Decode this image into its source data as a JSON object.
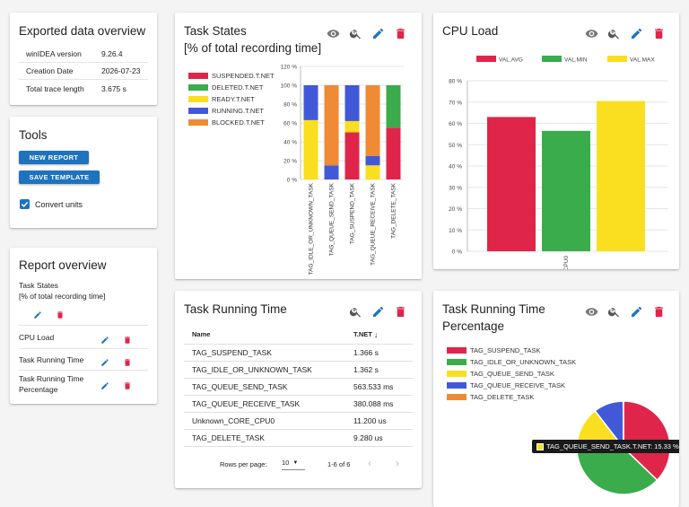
{
  "colors": {
    "red": "#e0254a",
    "green": "#3aac4b",
    "yellow": "#f9df1f",
    "blue": "#4159d8",
    "orange": "#ef8a35",
    "accent": "#1e73be"
  },
  "export": {
    "title": "Exported data overview",
    "rows": [
      {
        "key": "winIDEA version",
        "value": "9.26.4"
      },
      {
        "key": "Creation Date",
        "value": "2026-07-23"
      },
      {
        "key": "Total trace length",
        "value": "3.675 s"
      }
    ]
  },
  "tools": {
    "title": "Tools",
    "new_report": "NEW REPORT",
    "save_template": "SAVE TEMPLATE",
    "convert_units": "Convert units",
    "convert_checked": true
  },
  "report_overview": {
    "title": "Report overview",
    "items": [
      "Task States",
      "[% of total recording time]",
      "CPU Load",
      "Task Running Time",
      "Task Running Time",
      "Percentage"
    ]
  },
  "task_states": {
    "title_line1": "Task States",
    "title_line2": "[% of total recording time]",
    "icons": [
      "eye-icon",
      "zoom-icon",
      "edit-icon",
      "delete-icon"
    ]
  },
  "cpu_load": {
    "title": "CPU Load"
  },
  "task_running_time": {
    "title": "Task Running Time",
    "col_name": "Name",
    "col_value": "T.NET",
    "rows": [
      {
        "name": "TAG_SUSPEND_TASK",
        "value": "1.366 s"
      },
      {
        "name": "TAG_IDLE_OR_UNKNOWN_TASK",
        "value": "1.362 s"
      },
      {
        "name": "TAG_QUEUE_SEND_TASK",
        "value": "563.533 ms"
      },
      {
        "name": "TAG_QUEUE_RECEIVE_TASK",
        "value": "380.088 ms"
      },
      {
        "name": "Unknown_CORE_CPU0",
        "value": "11.200 us"
      },
      {
        "name": "TAG_DELETE_TASK",
        "value": "9.280 us"
      }
    ],
    "rows_per_page_label": "Rows per page:",
    "rows_per_page": "10",
    "page_range": "1-6 of 6"
  },
  "trt_pct": {
    "title_line1": "Task Running Time",
    "title_line2": "Percentage",
    "tooltip": "TAG_QUEUE_SEND_TASK.T.NET: 15.33 %"
  },
  "chart_data": [
    {
      "type": "bar",
      "stacked": true,
      "title": "Task States [% of total recording time]",
      "categories": [
        "TAG_IDLE_OR_UNKNOWN_TASK",
        "TAG_QUEUE_SEND_TASK",
        "TAG_SUSPEND_TASK",
        "TAG_QUEUE_RECEIVE_TASK",
        "TAG_DELETE_TASK"
      ],
      "yticks": [
        "0 %",
        "20 %",
        "40 %",
        "60 %",
        "80 %",
        "100 %",
        "120 %"
      ],
      "ylim": [
        0,
        120
      ],
      "series": [
        {
          "name": "SUSPENDED.T.NET",
          "color": "#e0254a",
          "values": [
            0,
            0,
            50,
            0,
            55
          ]
        },
        {
          "name": "DELETED.T.NET",
          "color": "#3aac4b",
          "values": [
            0,
            0,
            0,
            0,
            45
          ]
        },
        {
          "name": "READY.T.NET",
          "color": "#f9df1f",
          "values": [
            63,
            0,
            12,
            15,
            0
          ]
        },
        {
          "name": "RUNNING.T.NET",
          "color": "#4159d8",
          "values": [
            37,
            15,
            38,
            10,
            0
          ]
        },
        {
          "name": "BLOCKED.T.NET",
          "color": "#ef8a35",
          "values": [
            0,
            85,
            0,
            75,
            0
          ]
        }
      ],
      "legend": "left"
    },
    {
      "type": "bar",
      "title": "CPU Load",
      "categories": [
        "CPU0"
      ],
      "yticks": [
        "0 %",
        "10 %",
        "20 %",
        "30 %",
        "40 %",
        "50 %",
        "60 %",
        "70 %",
        "80 %"
      ],
      "ylim": [
        0,
        80
      ],
      "series": [
        {
          "name": "VAL.AVG",
          "color": "#e0254a",
          "values": [
            63
          ]
        },
        {
          "name": "VAL.MIN",
          "color": "#3aac4b",
          "values": [
            56.5
          ]
        },
        {
          "name": "VAL.MAX",
          "color": "#f9df1f",
          "values": [
            70.5
          ]
        }
      ],
      "legend": "top"
    },
    {
      "type": "pie",
      "title": "Task Running Time Percentage",
      "labels": [
        "TAG_SUSPEND_TASK",
        "TAG_IDLE_OR_UNKNOWN_TASK",
        "TAG_QUEUE_SEND_TASK",
        "TAG_QUEUE_RECEIVE_TASK",
        "TAG_DELETE_TASK"
      ],
      "colors": [
        "#e0254a",
        "#3aac4b",
        "#f9df1f",
        "#4159d8",
        "#ef8a35"
      ],
      "values": [
        37.17,
        37.06,
        15.33,
        10.34,
        0.1
      ],
      "legend": "top-left"
    }
  ]
}
